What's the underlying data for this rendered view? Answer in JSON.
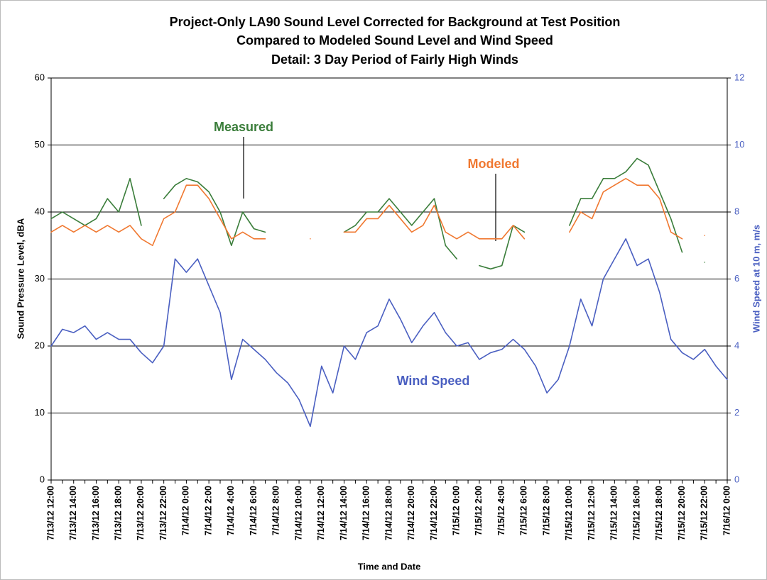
{
  "chart_data": {
    "type": "line",
    "title": [
      "Project-Only LA90 Sound Level Corrected for Background at Test Position",
      "Compared to Modeled Sound Level and Wind Speed",
      "Detail:  3 Day Period of Fairly High Winds"
    ],
    "x_label": "Time and Date",
    "y_label": "Sound Pressure Level, dBA",
    "y2_label": "Wind Speed at 10 m, m/s",
    "categories": [
      "7/13/12 12:00",
      null,
      "7/13/12 14:00",
      null,
      "7/13/12 16:00",
      null,
      "7/13/12 18:00",
      null,
      "7/13/12 20:00",
      null,
      "7/13/12 22:00",
      null,
      "7/14/12 0:00",
      null,
      "7/14/12 2:00",
      null,
      "7/14/12 4:00",
      null,
      "7/14/12 6:00",
      null,
      "7/14/12 8:00",
      null,
      "7/14/12 10:00",
      null,
      "7/14/12 12:00",
      null,
      "7/14/12 14:00",
      null,
      "7/14/12 16:00",
      null,
      "7/14/12 18:00",
      null,
      "7/14/12 20:00",
      null,
      "7/14/12 22:00",
      null,
      "7/15/12 0:00",
      null,
      "7/15/12 2:00",
      null,
      "7/15/12 4:00",
      null,
      "7/15/12 6:00",
      null,
      "7/15/12 8:00",
      null,
      "7/15/12 10:00",
      null,
      "7/15/12 12:00",
      null,
      "7/15/12 14:00",
      null,
      "7/15/12 16:00",
      null,
      "7/15/12 18:00",
      null,
      "7/15/12 20:00",
      null,
      "7/15/12 22:00",
      null,
      "7/16/12 0:00"
    ],
    "series": [
      {
        "name": "Measured",
        "color": "#3a7d3a",
        "values": [
          39,
          40,
          39,
          38,
          39,
          42,
          40,
          45,
          38,
          null,
          42,
          44,
          45,
          44.5,
          43,
          40,
          35,
          40,
          37.5,
          37,
          null,
          null,
          null,
          null,
          null,
          null,
          37,
          38,
          40,
          40,
          42,
          40,
          38,
          40,
          42,
          35,
          33,
          null,
          32,
          31.5,
          32,
          38,
          37,
          null,
          null,
          null,
          38,
          42,
          42,
          45,
          45,
          46,
          48,
          47,
          43,
          39,
          34,
          null,
          32.5,
          null,
          null
        ]
      },
      {
        "name": "Modeled",
        "color": "#f07830",
        "values": [
          37,
          38,
          37,
          38,
          37,
          38,
          37,
          38,
          36,
          35,
          39,
          40,
          44,
          44,
          42,
          39,
          36,
          37,
          36,
          36,
          null,
          null,
          null,
          36,
          null,
          null,
          37,
          37,
          39,
          39,
          41,
          39,
          37,
          38,
          41,
          37,
          36,
          37,
          36,
          36,
          36,
          38,
          36,
          null,
          null,
          null,
          37,
          40,
          39,
          43,
          44,
          45,
          44,
          44,
          42,
          37,
          36,
          null,
          36.5,
          null,
          null
        ]
      },
      {
        "name": "Wind Speed",
        "color": "#4a5fc1",
        "axis": "y2",
        "values": [
          4.0,
          4.5,
          4.4,
          4.6,
          4.2,
          4.4,
          4.2,
          4.2,
          3.8,
          3.5,
          4.0,
          6.6,
          6.2,
          6.6,
          5.8,
          5.0,
          3.0,
          4.2,
          3.9,
          3.6,
          3.2,
          2.9,
          2.4,
          1.6,
          3.4,
          2.6,
          4.0,
          3.6,
          4.4,
          4.6,
          5.4,
          4.8,
          4.1,
          4.6,
          5.0,
          4.4,
          4.0,
          4.1,
          3.6,
          3.8,
          3.9,
          4.2,
          3.9,
          3.4,
          2.6,
          3.0,
          4.0,
          5.4,
          4.6,
          6.0,
          6.6,
          7.2,
          6.4,
          6.6,
          5.6,
          4.2,
          3.8,
          3.6,
          3.9,
          3.4,
          3.0
        ]
      }
    ],
    "ylim": [
      0,
      60
    ],
    "yticks": [
      0,
      10,
      20,
      30,
      40,
      50,
      60
    ],
    "y2lim": [
      0,
      12
    ],
    "y2ticks": [
      0,
      2,
      4,
      6,
      8,
      10,
      12
    ],
    "grid": true
  }
}
